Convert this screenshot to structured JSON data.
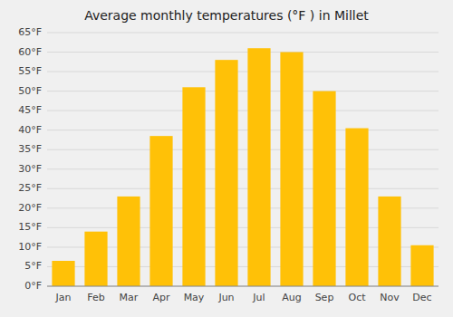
{
  "chart_data": {
    "type": "bar",
    "title": "Average monthly temperatures (°F ) in Millet",
    "categories": [
      "Jan",
      "Feb",
      "Mar",
      "Apr",
      "May",
      "Jun",
      "Jul",
      "Aug",
      "Sep",
      "Oct",
      "Nov",
      "Dec"
    ],
    "values": [
      6.5,
      14,
      23,
      38.5,
      51,
      58,
      61,
      60,
      50,
      40.5,
      23,
      10.5
    ],
    "color": "#FFC107",
    "ylim": [
      0,
      65
    ],
    "yticks": [
      {
        "value": 0,
        "label": "0°F"
      },
      {
        "value": 5,
        "label": "5°F"
      },
      {
        "value": 10,
        "label": "10°F"
      },
      {
        "value": 15,
        "label": "15°F"
      },
      {
        "value": 20,
        "label": "20°F"
      },
      {
        "value": 25,
        "label": "25°F"
      },
      {
        "value": 30,
        "label": "30°F"
      },
      {
        "value": 35,
        "label": "35°F"
      },
      {
        "value": 40,
        "label": "40°F"
      },
      {
        "value": 45,
        "label": "45°F"
      },
      {
        "value": 50,
        "label": "50°F"
      },
      {
        "value": 55,
        "label": "55°F"
      },
      {
        "value": 60,
        "label": "60°F"
      },
      {
        "value": 65,
        "label": "65°F"
      }
    ],
    "grid": true
  }
}
